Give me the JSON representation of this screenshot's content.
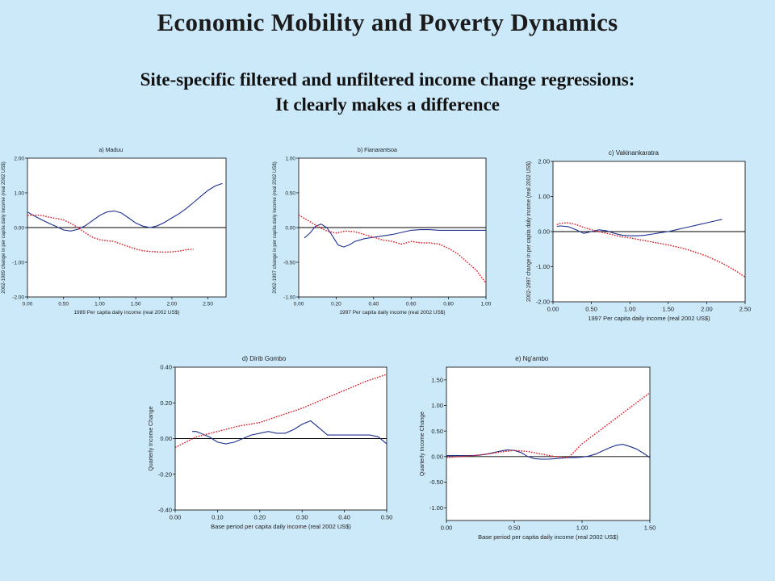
{
  "slide": {
    "title": "Economic Mobility and Poverty Dynamics",
    "subtitle_line1": "Site-specific filtered and unfiltered income change regressions:",
    "subtitle_line2": "It clearly makes a difference"
  },
  "colors": {
    "background": "#cce9f9",
    "unfiltered": "#1c2f8f",
    "filtered": "#e0141e",
    "zero_line": "#000000"
  },
  "chart_data": [
    {
      "type": "line",
      "title": "a) Maduu",
      "xlabel": "1989 Per capita daily income (real 2002 US$)",
      "ylabel": "2002-1989 change in per capita daily income (real 2002 US$)",
      "xlim": [
        0,
        2.75
      ],
      "ylim": [
        -2,
        2
      ],
      "xticks": [
        0,
        0.5,
        1,
        1.5,
        2,
        2.5
      ],
      "xtick_labels": [
        "0.00",
        "0.50",
        "1.00",
        "1.50",
        "2.00",
        "2.50"
      ],
      "yticks": [
        -2,
        -1,
        0,
        1,
        2
      ],
      "ytick_labels": [
        "-2.00",
        "-1.00",
        "0.00",
        "1.00",
        "2.00"
      ],
      "zero_line": true,
      "series": [
        {
          "style": "solid",
          "color": "#1c2f8f",
          "x": [
            0,
            0.1,
            0.2,
            0.3,
            0.4,
            0.5,
            0.6,
            0.7,
            0.8,
            0.9,
            1.0,
            1.1,
            1.2,
            1.3,
            1.4,
            1.5,
            1.6,
            1.7,
            1.8,
            1.9,
            2.0,
            2.1,
            2.2,
            2.3,
            2.4,
            2.5,
            2.6,
            2.7
          ],
          "y": [
            0.45,
            0.33,
            0.22,
            0.12,
            0.03,
            -0.07,
            -0.1,
            -0.05,
            0.05,
            0.2,
            0.35,
            0.45,
            0.48,
            0.42,
            0.28,
            0.13,
            0.04,
            0.0,
            0.05,
            0.15,
            0.28,
            0.4,
            0.55,
            0.72,
            0.9,
            1.07,
            1.2,
            1.27
          ]
        },
        {
          "style": "dotted",
          "color": "#e0141e",
          "x": [
            0,
            0.1,
            0.2,
            0.3,
            0.4,
            0.5,
            0.6,
            0.7,
            0.8,
            0.9,
            1.0,
            1.1,
            1.2,
            1.3,
            1.4,
            1.5,
            1.6,
            1.7,
            1.8,
            1.9,
            2.0,
            2.1,
            2.2,
            2.3
          ],
          "y": [
            0.35,
            0.36,
            0.35,
            0.3,
            0.26,
            0.22,
            0.12,
            0.0,
            -0.15,
            -0.28,
            -0.35,
            -0.38,
            -0.4,
            -0.48,
            -0.55,
            -0.62,
            -0.67,
            -0.69,
            -0.7,
            -0.71,
            -0.7,
            -0.68,
            -0.64,
            -0.62
          ]
        }
      ]
    },
    {
      "type": "line",
      "title": "b) Fianarantsoa",
      "xlabel": "1997 Per capita daily income (real 2002 US$)",
      "ylabel": "2002-1997 change in per capita daily income (real 2002 US$)",
      "xlim": [
        0,
        1
      ],
      "ylim": [
        -1,
        1
      ],
      "xticks": [
        0,
        0.2,
        0.4,
        0.6,
        0.8,
        1
      ],
      "xtick_labels": [
        "0.00",
        "0.20",
        "0.40",
        "0.60",
        "0.80",
        "1.00"
      ],
      "yticks": [
        -1,
        -0.5,
        0,
        0.5,
        1
      ],
      "ytick_labels": [
        "-1.00",
        "-0.50",
        "0.00",
        "0.50",
        "1.00"
      ],
      "zero_line": true,
      "series": [
        {
          "style": "solid",
          "color": "#1c2f8f",
          "x": [
            0.03,
            0.06,
            0.09,
            0.12,
            0.15,
            0.18,
            0.21,
            0.24,
            0.27,
            0.3,
            0.35,
            0.4,
            0.45,
            0.5,
            0.55,
            0.6,
            0.65,
            0.7,
            0.75,
            0.8,
            0.85,
            0.9,
            0.95,
            1.0
          ],
          "y": [
            -0.15,
            -0.08,
            0.02,
            0.05,
            0.0,
            -0.12,
            -0.25,
            -0.28,
            -0.25,
            -0.2,
            -0.16,
            -0.14,
            -0.12,
            -0.1,
            -0.07,
            -0.04,
            -0.03,
            -0.03,
            -0.04,
            -0.04,
            -0.04,
            -0.04,
            -0.04,
            -0.04
          ]
        },
        {
          "style": "dotted",
          "color": "#e0141e",
          "x": [
            0.0,
            0.05,
            0.1,
            0.15,
            0.2,
            0.25,
            0.3,
            0.35,
            0.4,
            0.45,
            0.5,
            0.55,
            0.6,
            0.65,
            0.7,
            0.75,
            0.8,
            0.85,
            0.9,
            0.95,
            1.0
          ],
          "y": [
            0.18,
            0.1,
            0.02,
            -0.05,
            -0.08,
            -0.05,
            -0.06,
            -0.1,
            -0.14,
            -0.18,
            -0.2,
            -0.24,
            -0.2,
            -0.22,
            -0.22,
            -0.24,
            -0.3,
            -0.38,
            -0.5,
            -0.62,
            -0.8
          ]
        }
      ]
    },
    {
      "type": "line",
      "title": "c) Vakinankaratra",
      "xlabel": "1997 Per capita daily income (real 2002 US$)",
      "ylabel": "2002-1997 change in per capita daily income (real 2002 US$)",
      "xlim": [
        0,
        2.5
      ],
      "ylim": [
        -2,
        2
      ],
      "xticks": [
        0,
        0.5,
        1,
        1.5,
        2,
        2.5
      ],
      "xtick_labels": [
        "0.00",
        "0.50",
        "1.00",
        "1.50",
        "2.00",
        "2.50"
      ],
      "yticks": [
        -2,
        -1,
        0,
        1,
        2
      ],
      "ytick_labels": [
        "-2.00",
        "-1.00",
        "0.00",
        "1.00",
        "2.00"
      ],
      "zero_line": true,
      "series": [
        {
          "style": "solid",
          "color": "#1c2f8f",
          "x": [
            0.05,
            0.1,
            0.2,
            0.3,
            0.4,
            0.5,
            0.6,
            0.7,
            0.8,
            0.9,
            1.0,
            1.1,
            1.2,
            1.3,
            1.4,
            1.5,
            1.6,
            1.7,
            1.8,
            1.9,
            2.0,
            2.1,
            2.2
          ],
          "y": [
            0.15,
            0.16,
            0.14,
            0.05,
            -0.05,
            0.0,
            0.05,
            0.02,
            -0.05,
            -0.1,
            -0.12,
            -0.12,
            -0.1,
            -0.07,
            -0.03,
            0.0,
            0.05,
            0.1,
            0.15,
            0.2,
            0.25,
            0.3,
            0.35
          ]
        },
        {
          "style": "dotted",
          "color": "#e0141e",
          "x": [
            0.05,
            0.1,
            0.2,
            0.3,
            0.4,
            0.5,
            0.6,
            0.7,
            0.8,
            0.9,
            1.0,
            1.1,
            1.2,
            1.3,
            1.4,
            1.5,
            1.6,
            1.7,
            1.8,
            1.9,
            2.0,
            2.1,
            2.2,
            2.3,
            2.4,
            2.5
          ],
          "y": [
            0.2,
            0.24,
            0.25,
            0.2,
            0.12,
            0.05,
            0.0,
            -0.05,
            -0.1,
            -0.15,
            -0.18,
            -0.22,
            -0.26,
            -0.3,
            -0.34,
            -0.38,
            -0.43,
            -0.48,
            -0.55,
            -0.62,
            -0.7,
            -0.8,
            -0.9,
            -1.02,
            -1.15,
            -1.3
          ]
        }
      ]
    },
    {
      "type": "line",
      "title": "d) Dirib Gombo",
      "xlabel": "Base period per capita daily income (real 2002 US$)",
      "ylabel": "Quarterly Income Change",
      "xlim": [
        0,
        0.5
      ],
      "ylim": [
        -0.4,
        0.4
      ],
      "xticks": [
        0,
        0.1,
        0.2,
        0.3,
        0.4,
        0.5
      ],
      "xtick_labels": [
        "0.00",
        "0.10",
        "0.20",
        "0.30",
        "0.40",
        "0.50"
      ],
      "yticks": [
        -0.4,
        -0.2,
        0,
        0.2,
        0.4
      ],
      "ytick_labels": [
        "-0.40",
        "-0.20",
        "0.00",
        "0.20",
        "0.40"
      ],
      "zero_line": true,
      "series": [
        {
          "style": "solid",
          "color": "#1c2f8f",
          "x": [
            0.04,
            0.05,
            0.06,
            0.08,
            0.1,
            0.12,
            0.14,
            0.16,
            0.18,
            0.2,
            0.22,
            0.24,
            0.26,
            0.28,
            0.3,
            0.32,
            0.34,
            0.36,
            0.38,
            0.4,
            0.42,
            0.44,
            0.46,
            0.48,
            0.5
          ],
          "y": [
            0.04,
            0.04,
            0.03,
            0.01,
            -0.02,
            -0.03,
            -0.02,
            0.0,
            0.02,
            0.03,
            0.04,
            0.03,
            0.03,
            0.05,
            0.08,
            0.1,
            0.06,
            0.02,
            0.02,
            0.02,
            0.02,
            0.02,
            0.02,
            0.01,
            -0.03
          ]
        },
        {
          "style": "dotted",
          "color": "#e0141e",
          "x": [
            0.0,
            0.05,
            0.1,
            0.15,
            0.2,
            0.25,
            0.3,
            0.35,
            0.4,
            0.45,
            0.5
          ],
          "y": [
            -0.05,
            0.01,
            0.04,
            0.07,
            0.09,
            0.13,
            0.17,
            0.22,
            0.27,
            0.32,
            0.36
          ]
        }
      ]
    },
    {
      "type": "line",
      "title": "e) Ng'ambo",
      "xlabel": "Base period per capita daily income (real 2002 US$)",
      "ylabel": "Quarterly Income Change",
      "xlim": [
        0,
        1.5
      ],
      "ylim": [
        -1.25,
        1.75
      ],
      "xticks": [
        0,
        0.5,
        1,
        1.5
      ],
      "xtick_labels": [
        "0.00",
        "0.50",
        "1.00",
        "1.50"
      ],
      "yticks": [
        -1,
        -0.5,
        0,
        0.5,
        1,
        1.5
      ],
      "ytick_labels": [
        "-1.00",
        "-0.50",
        "0.00",
        "0.50",
        "1.00",
        "1.50"
      ],
      "zero_line": true,
      "series": [
        {
          "style": "solid",
          "color": "#1c2f8f",
          "x": [
            0.0,
            0.05,
            0.1,
            0.15,
            0.2,
            0.25,
            0.3,
            0.35,
            0.4,
            0.45,
            0.5,
            0.55,
            0.6,
            0.65,
            0.7,
            0.75,
            0.8,
            0.85,
            0.9,
            0.95,
            1.0,
            1.05,
            1.1,
            1.15,
            1.2,
            1.25,
            1.3,
            1.35,
            1.4,
            1.45,
            1.5
          ],
          "y": [
            0.02,
            0.02,
            0.02,
            0.02,
            0.02,
            0.03,
            0.05,
            0.08,
            0.11,
            0.13,
            0.12,
            0.08,
            0.0,
            -0.04,
            -0.05,
            -0.05,
            -0.04,
            -0.03,
            -0.02,
            -0.02,
            -0.01,
            0.01,
            0.05,
            0.11,
            0.17,
            0.22,
            0.24,
            0.2,
            0.15,
            0.07,
            -0.02
          ]
        },
        {
          "style": "dotted",
          "color": "#e0141e",
          "x": [
            0.0,
            0.1,
            0.2,
            0.3,
            0.4,
            0.5,
            0.6,
            0.7,
            0.8,
            0.9,
            1.0,
            1.1,
            1.2,
            1.3,
            1.4,
            1.5
          ],
          "y": [
            -0.02,
            0.0,
            0.02,
            0.05,
            0.09,
            0.12,
            0.1,
            0.05,
            0.0,
            -0.02,
            0.25,
            0.45,
            0.65,
            0.85,
            1.05,
            1.25
          ]
        }
      ]
    }
  ]
}
